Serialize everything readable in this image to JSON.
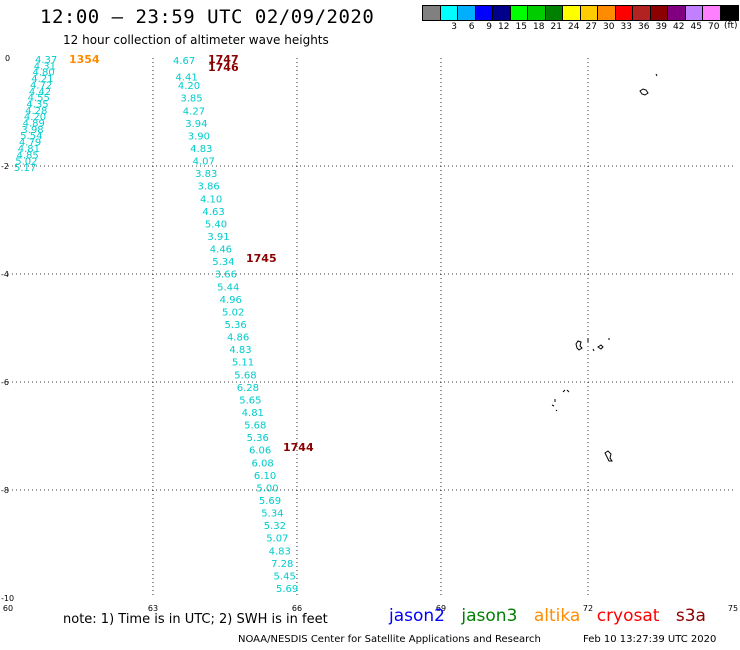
{
  "header": {
    "title": "12:00 – 23:59 UTC 02/09/2020",
    "subtitle": "12 hour collection of altimeter wave heights"
  },
  "legend": {
    "colors": [
      "#808080",
      "#00ffff",
      "#00b0ff",
      "#0000ff",
      "#00008b",
      "#00ff00",
      "#00cc00",
      "#008000",
      "#ffff00",
      "#ffcc00",
      "#ff8c00",
      "#ff0000",
      "#b22222",
      "#8b0000",
      "#800080",
      "#c080ff",
      "#ff80ff",
      "#000000"
    ],
    "labels": [
      "3",
      "6",
      "9",
      "12",
      "15",
      "18",
      "21",
      "24",
      "27",
      "30",
      "33",
      "36",
      "39",
      "42",
      "45",
      "70"
    ],
    "unit": "(ft)"
  },
  "axes": {
    "x_ticks": [
      "60",
      "63",
      "66",
      "69",
      "72",
      "75"
    ],
    "y_ticks": [
      "0",
      "-2",
      "-4",
      "-6",
      "-8",
      "-10"
    ]
  },
  "tracks": [
    {
      "satellite": "altika",
      "label": "1354",
      "label_color": "#ff8c00",
      "values": [
        "4.37",
        "4.31",
        "4.80",
        "4.21",
        "4.72",
        "4.42",
        "4.55",
        "4.35",
        "4.28",
        "4.20",
        "4.89",
        "3.98",
        "5.54",
        "4.79",
        "4.81",
        "4.85",
        "5.02",
        "5.17"
      ]
    },
    {
      "satellite": "s3a",
      "label": "1747",
      "label_color": "#8b0000",
      "values": []
    },
    {
      "satellite": "s3a",
      "label": "1746",
      "label_color": "#8b0000",
      "values": [
        "4.67",
        "4.41",
        "4.20",
        "3.85",
        "4.27",
        "3.94",
        "3.90",
        "4.83",
        "4.07",
        "3.83",
        "3.86",
        "4.10",
        "4.63",
        "5.40",
        "3.91",
        "4.46",
        "5.34"
      ]
    },
    {
      "satellite": "s3a",
      "label": "1745",
      "label_color": "#8b0000",
      "values": [
        "3.66",
        "5.44",
        "4.96",
        "5.02",
        "5.36",
        "4.86",
        "4.83",
        "5.11",
        "5.68",
        "6.28",
        "5.65",
        "4.81",
        "5.68",
        "5.36",
        "6.06"
      ]
    },
    {
      "satellite": "s3a",
      "label": "1744",
      "label_color": "#8b0000",
      "values": [
        "6.08",
        "6.10",
        "5.00",
        "5.69",
        "5.34",
        "5.32",
        "5.07",
        "4.83",
        "7.28",
        "5.45",
        "5.69"
      ]
    }
  ],
  "footer": {
    "note": "note:  1) Time is in UTC;  2) SWH is in feet",
    "satellites": [
      {
        "name": "jason2",
        "color": "#0000ff"
      },
      {
        "name": "jason3",
        "color": "#008000"
      },
      {
        "name": "altika",
        "color": "#ff8c00"
      },
      {
        "name": "cryosat",
        "color": "#ff0000"
      },
      {
        "name": "s3a",
        "color": "#8b0000"
      }
    ],
    "credit": "NOAA/NESDIS Center for Satellite Applications and Research",
    "timestamp": "Feb 10 13:27:39 UTC 2020"
  }
}
